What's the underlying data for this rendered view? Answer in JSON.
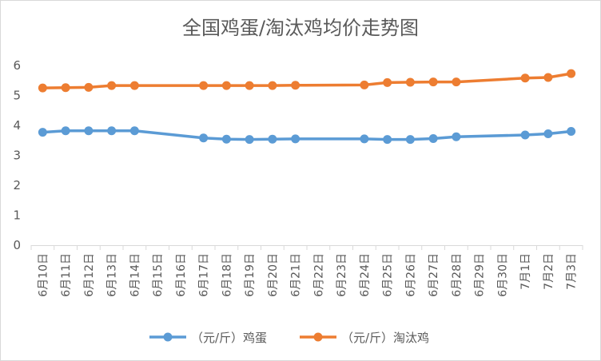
{
  "chart_data": {
    "type": "line",
    "title": "全国鸡蛋/淘汰鸡均价走势图",
    "xlabel": "",
    "ylabel": "",
    "ylim": [
      0,
      6
    ],
    "yticks": [
      "0",
      "1",
      "2",
      "3",
      "4",
      "5",
      "6"
    ],
    "grid": false,
    "legend_position": "bottom",
    "categories": [
      "6月10日",
      "6月11日",
      "6月12日",
      "6月13日",
      "6月14日",
      "6月15日",
      "6月16日",
      "6月17日",
      "6月18日",
      "6月19日",
      "6月20日",
      "6月21日",
      "6月22日",
      "6月23日",
      "6月24日",
      "6月25日",
      "6月26日",
      "6月27日",
      "6月28日",
      "6月29日",
      "6月30日",
      "7月1日",
      "7月2日",
      "7月3日"
    ],
    "series": [
      {
        "name": "（元/斤）鸡蛋",
        "color": "#5B9BD5",
        "values": [
          3.77,
          3.82,
          3.82,
          3.82,
          3.82,
          null,
          null,
          3.58,
          3.54,
          3.53,
          3.54,
          3.55,
          null,
          null,
          3.55,
          3.53,
          3.53,
          3.56,
          3.62,
          null,
          null,
          3.68,
          3.72,
          3.8
        ]
      },
      {
        "name": "（元/斤）淘汰鸡",
        "color": "#ED7D31",
        "values": [
          5.25,
          5.26,
          5.27,
          5.33,
          5.33,
          null,
          null,
          5.33,
          5.33,
          5.33,
          5.33,
          5.34,
          null,
          null,
          5.35,
          5.43,
          5.44,
          5.45,
          5.45,
          null,
          null,
          5.58,
          5.6,
          5.73
        ]
      }
    ]
  }
}
